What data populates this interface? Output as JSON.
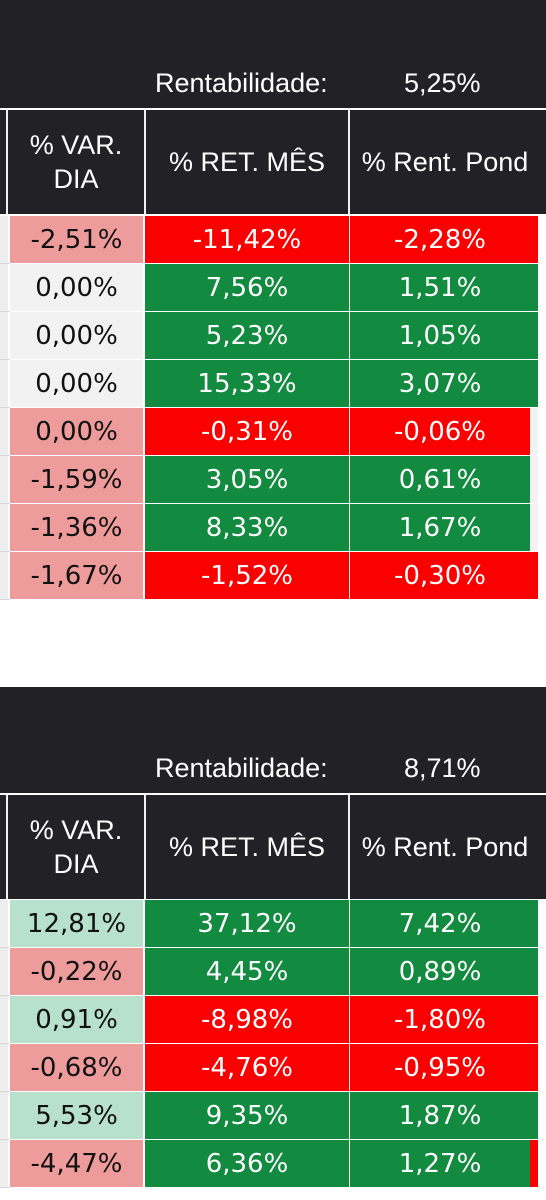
{
  "colors": {
    "header_bg": "#222125",
    "green": "#128a3f",
    "red": "#fa0001",
    "pink": "#ee9c9b",
    "light_green": "#b7e1cd",
    "neutral": "#f2f2f2"
  },
  "tables": [
    {
      "rentabilidade_label": "Rentabilidade:",
      "rentabilidade_value": "5,25%",
      "columns": [
        "% VAR.\nDIA",
        "% RET. MÊS",
        "% Rent. Pond"
      ],
      "rows": [
        {
          "var_dia": "-2,51%",
          "ret_mes": "-11,42%",
          "rent_pond": "-2,28%",
          "var_color": "pink",
          "ret_color": "red",
          "pond_color": "red",
          "edge_color": "red"
        },
        {
          "var_dia": "0,00%",
          "ret_mes": "7,56%",
          "rent_pond": "1,51%",
          "var_color": "neutral",
          "ret_color": "green",
          "pond_color": "green",
          "edge_color": "green"
        },
        {
          "var_dia": "0,00%",
          "ret_mes": "5,23%",
          "rent_pond": "1,05%",
          "var_color": "neutral",
          "ret_color": "green",
          "pond_color": "green",
          "edge_color": "green"
        },
        {
          "var_dia": "0,00%",
          "ret_mes": "15,33%",
          "rent_pond": "3,07%",
          "var_color": "neutral",
          "ret_color": "green",
          "pond_color": "green",
          "edge_color": "green"
        },
        {
          "var_dia": "0,00%",
          "ret_mes": "-0,31%",
          "rent_pond": "-0,06%",
          "var_color": "pink",
          "ret_color": "red",
          "pond_color": "red",
          "edge_color": "neutral"
        },
        {
          "var_dia": "-1,59%",
          "ret_mes": "3,05%",
          "rent_pond": "0,61%",
          "var_color": "pink",
          "ret_color": "green",
          "pond_color": "green",
          "edge_color": "neutral"
        },
        {
          "var_dia": "-1,36%",
          "ret_mes": "8,33%",
          "rent_pond": "1,67%",
          "var_color": "pink",
          "ret_color": "green",
          "pond_color": "green",
          "edge_color": "neutral"
        },
        {
          "var_dia": "-1,67%",
          "ret_mes": "-1,52%",
          "rent_pond": "-0,30%",
          "var_color": "pink",
          "ret_color": "red",
          "pond_color": "red",
          "edge_color": "red"
        }
      ]
    },
    {
      "rentabilidade_label": "Rentabilidade:",
      "rentabilidade_value": "8,71%",
      "columns": [
        "% VAR.\nDIA",
        "% RET. MÊS",
        "% Rent. Pond"
      ],
      "rows": [
        {
          "var_dia": "12,81%",
          "ret_mes": "37,12%",
          "rent_pond": "7,42%",
          "var_color": "light_green",
          "ret_color": "green",
          "pond_color": "green",
          "edge_color": "green"
        },
        {
          "var_dia": "-0,22%",
          "ret_mes": "4,45%",
          "rent_pond": "0,89%",
          "var_color": "pink",
          "ret_color": "green",
          "pond_color": "green",
          "edge_color": "green"
        },
        {
          "var_dia": "0,91%",
          "ret_mes": "-8,98%",
          "rent_pond": "-1,80%",
          "var_color": "light_green",
          "ret_color": "red",
          "pond_color": "red",
          "edge_color": "red"
        },
        {
          "var_dia": "-0,68%",
          "ret_mes": "-4,76%",
          "rent_pond": "-0,95%",
          "var_color": "pink",
          "ret_color": "red",
          "pond_color": "red",
          "edge_color": "red"
        },
        {
          "var_dia": "5,53%",
          "ret_mes": "9,35%",
          "rent_pond": "1,87%",
          "var_color": "light_green",
          "ret_color": "green",
          "pond_color": "green",
          "edge_color": "green"
        },
        {
          "var_dia": "-4,47%",
          "ret_mes": "6,36%",
          "rent_pond": "1,27%",
          "var_color": "pink",
          "ret_color": "green",
          "pond_color": "green",
          "edge_color": "red"
        }
      ]
    }
  ]
}
